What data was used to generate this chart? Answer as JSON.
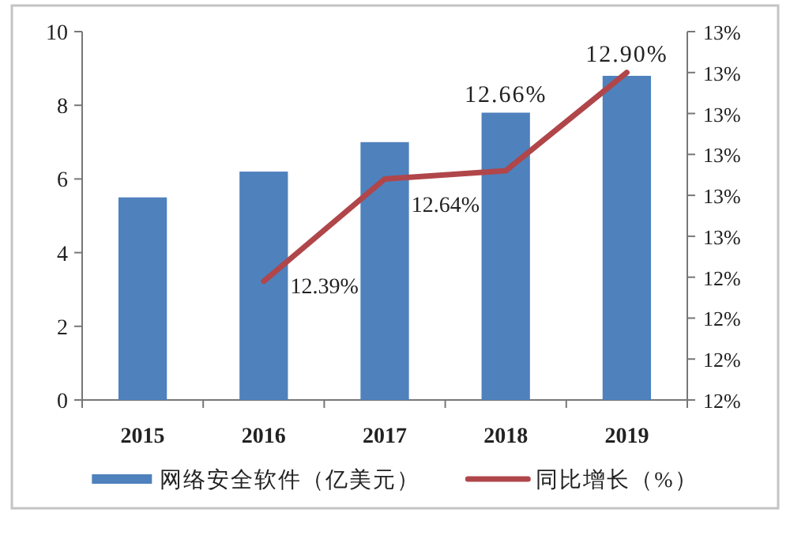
{
  "chart_data": {
    "type": "bar",
    "categories": [
      "2015",
      "2016",
      "2017",
      "2018",
      "2019"
    ],
    "series": [
      {
        "name": "网络安全软件（亿美元）",
        "color": "#4f81bd",
        "values": [
          5.5,
          6.2,
          7.0,
          7.8,
          8.8
        ]
      },
      {
        "name": "同比增长（%）",
        "type": "line",
        "axis": "y2",
        "color": "#b0464a",
        "values": [
          null,
          12.39,
          12.64,
          12.66,
          12.9
        ],
        "value_labels": [
          null,
          "12.39%",
          "12.64%",
          "12.66%",
          "12.90%"
        ]
      }
    ],
    "ylim": [
      0,
      10
    ],
    "yticks": [
      0,
      2,
      4,
      6,
      8,
      10
    ],
    "y2lim": [
      12.1,
      13.0
    ],
    "y2ticks": [
      {
        "value": 12.1,
        "label": "12%"
      },
      {
        "value": 12.2,
        "label": "12%"
      },
      {
        "value": 12.3,
        "label": "12%"
      },
      {
        "value": 12.4,
        "label": "12%"
      },
      {
        "value": 12.5,
        "label": "13%"
      },
      {
        "value": 12.6,
        "label": "13%"
      },
      {
        "value": 12.7,
        "label": "13%"
      },
      {
        "value": 12.8,
        "label": "13%"
      },
      {
        "value": 12.9,
        "label": "13%"
      },
      {
        "value": 13.0,
        "label": "13%"
      }
    ],
    "legend": "bottom"
  }
}
